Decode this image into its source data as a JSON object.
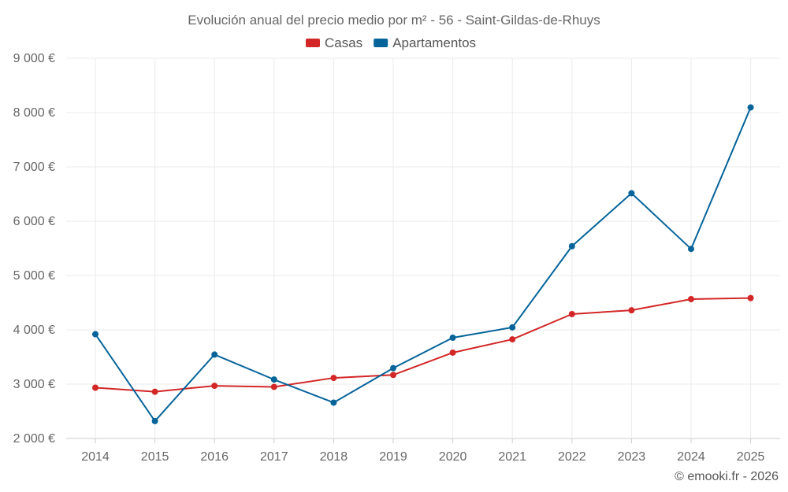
{
  "chart_data": {
    "type": "line",
    "title": "Evolución anual del precio medio por m² - 56 - Saint-Gildas-de-Rhuys",
    "categories": [
      "2014",
      "2015",
      "2016",
      "2017",
      "2018",
      "2019",
      "2020",
      "2021",
      "2022",
      "2023",
      "2024",
      "2025"
    ],
    "series": [
      {
        "name": "Casas",
        "color": "#d32727",
        "values": [
          2935,
          2860,
          2970,
          2950,
          3115,
          3170,
          3580,
          3825,
          4290,
          4360,
          4565,
          4585
        ]
      },
      {
        "name": "Apartamentos",
        "color": "#06649a",
        "values": [
          3920,
          2320,
          3545,
          3085,
          2660,
          3295,
          3855,
          4045,
          5540,
          6515,
          5490,
          8095
        ]
      }
    ],
    "ylim": [
      2000,
      9000
    ],
    "yticks": [
      2000,
      3000,
      4000,
      5000,
      6000,
      7000,
      8000,
      9000
    ],
    "ytick_labels": [
      "2 000 €",
      "3 000 €",
      "4 000 €",
      "5 000 €",
      "6 000 €",
      "7 000 €",
      "8 000 €",
      "9 000 €"
    ],
    "grid": true,
    "legend_position": "top-center"
  },
  "credit": "© emooki.fr - 2026"
}
